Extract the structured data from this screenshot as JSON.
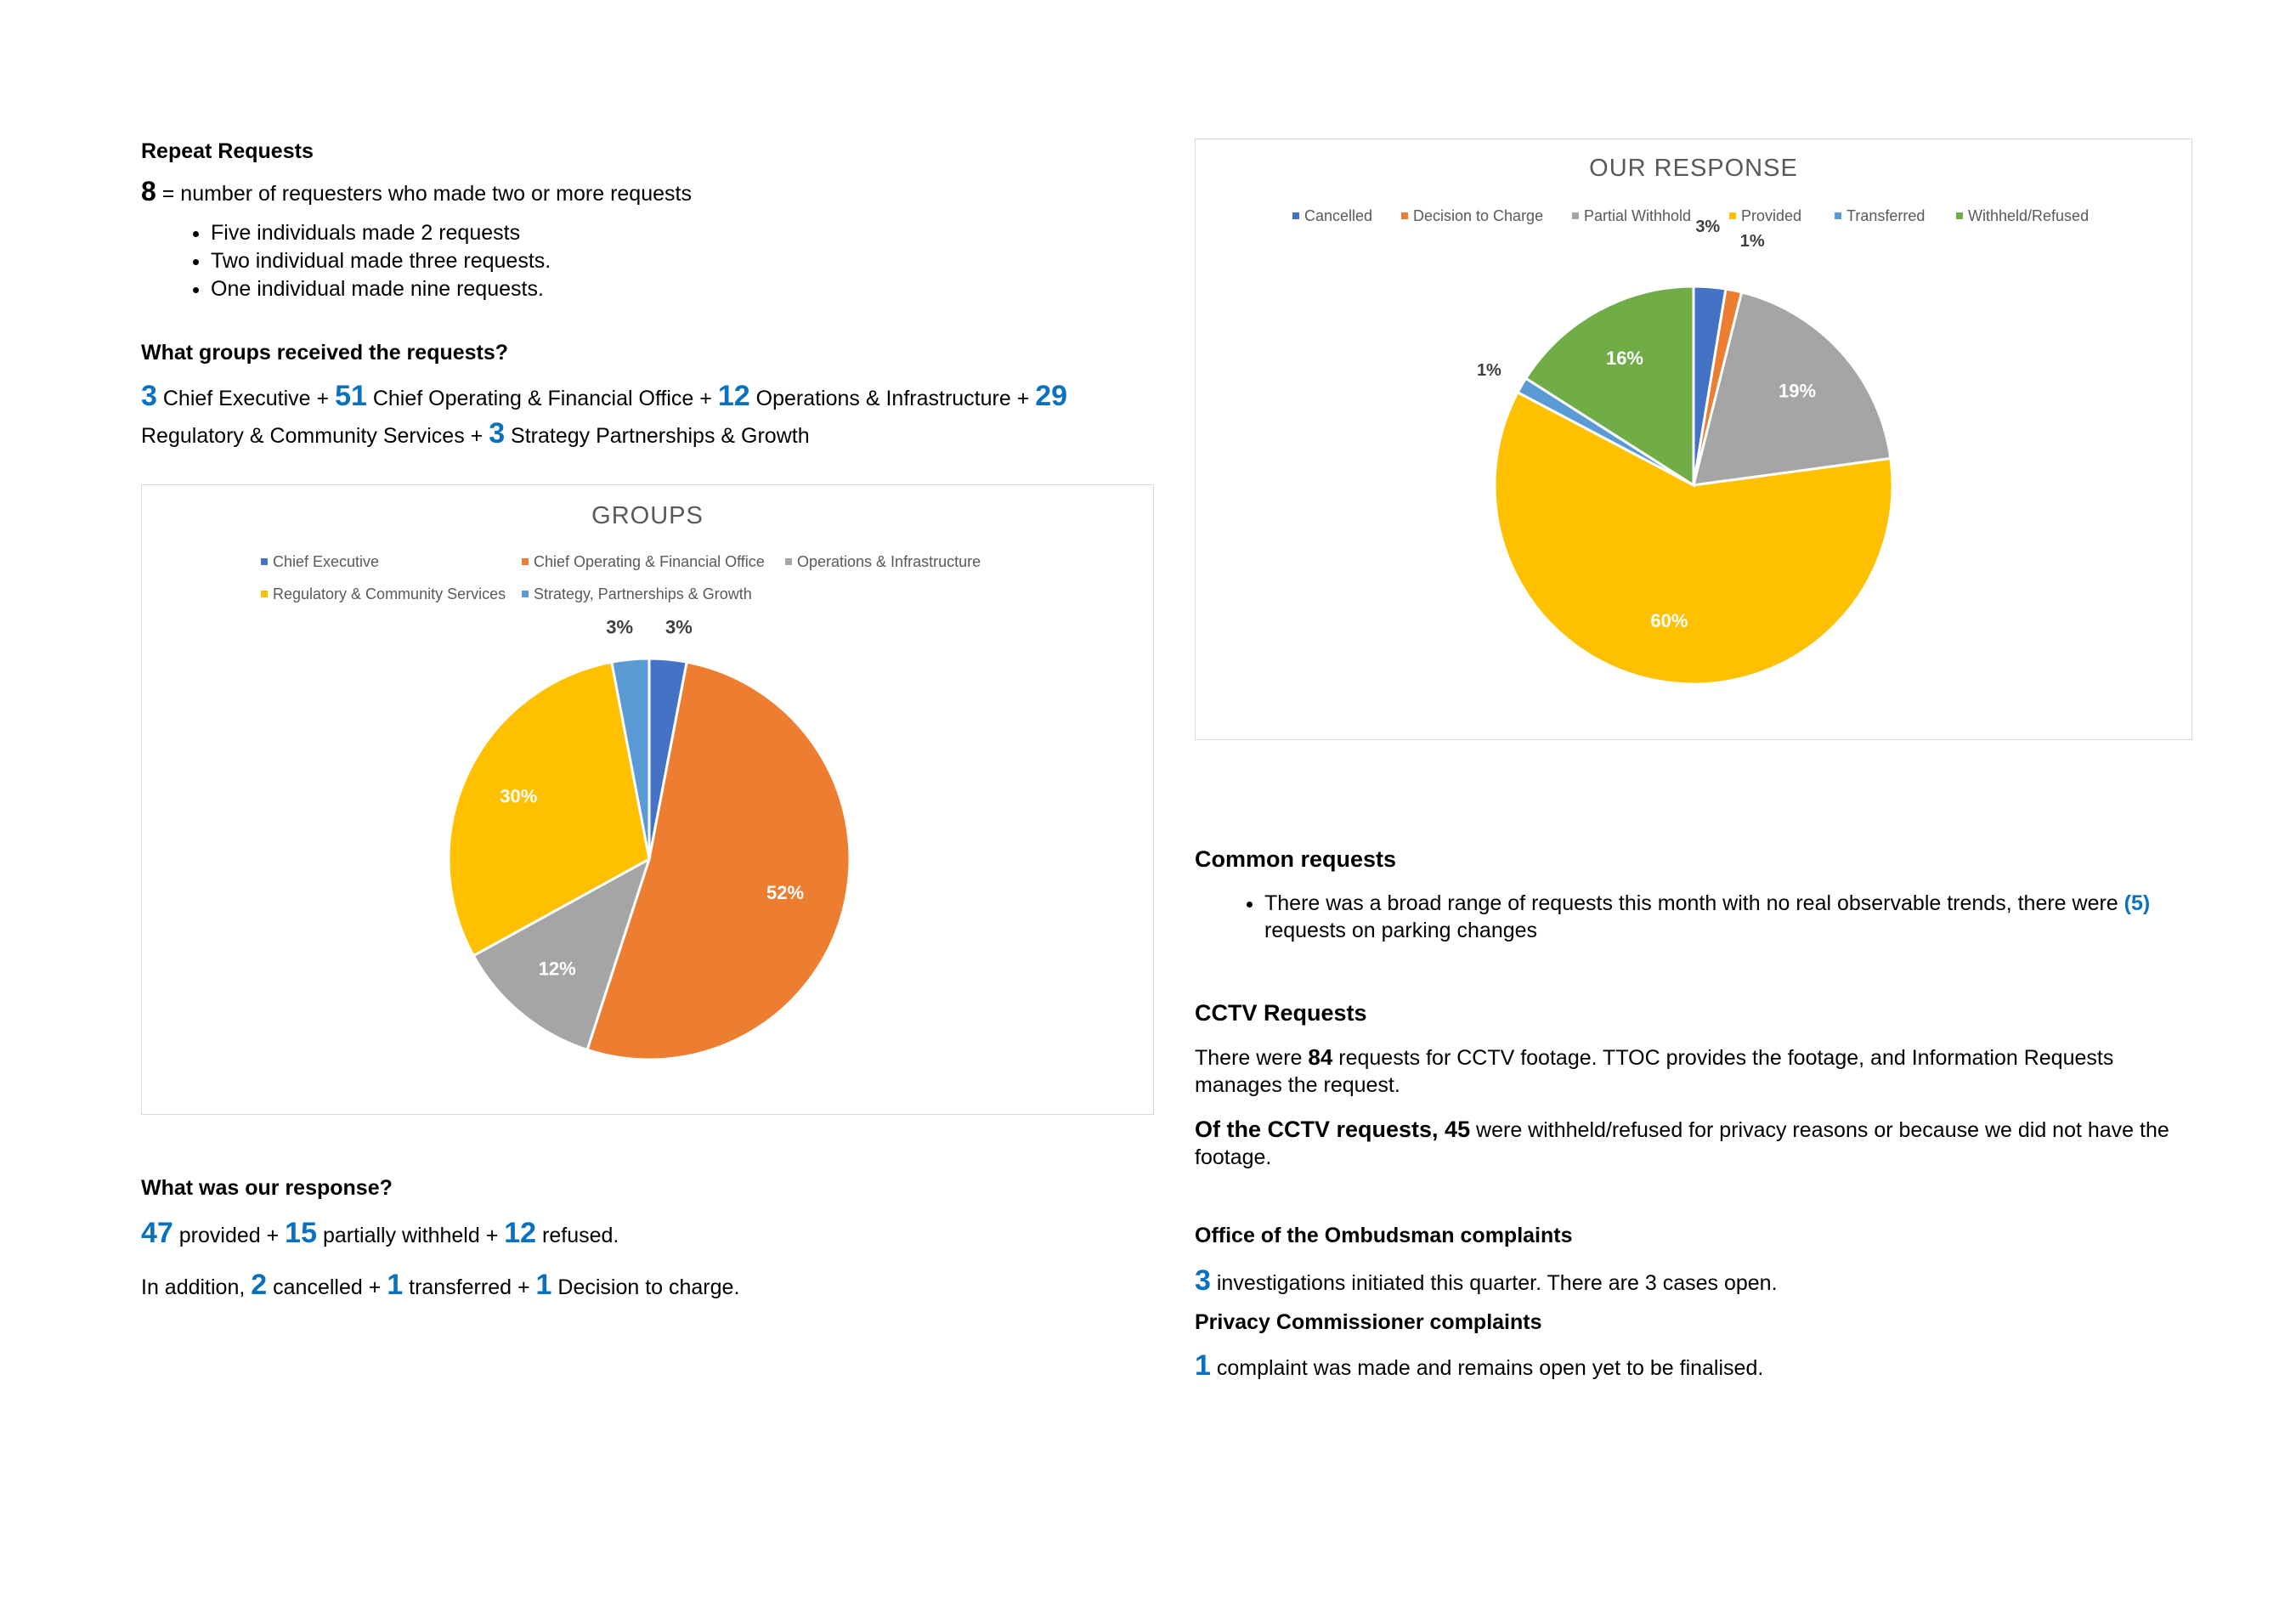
{
  "repeat": {
    "heading": "Repeat Requests",
    "number": "8",
    "text": " = number of requesters who made two or more requests",
    "bullets": [
      "Five individuals made 2 requests",
      "Two individual made three requests.",
      "One individual made nine requests."
    ]
  },
  "groups_text": {
    "heading": "What groups received the requests?",
    "n1": "3",
    "t1": " Chief Executive + ",
    "n2": "51",
    "t2": " Chief Operating & Financial Office + ",
    "n3": "12",
    "t3": " Operations & Infrastructure + ",
    "n4": "29",
    "t4": " Regulatory & Community Services + ",
    "n5": "3",
    "t5": " Strategy Partnerships & Growth"
  },
  "response_text": {
    "heading": "What was our response?",
    "n1": "47",
    "t1": " provided + ",
    "n2": "15",
    "t2": " partially withheld + ",
    "n3": "12",
    "t3": " refused.",
    "prefix": "In addition, ",
    "m1": "2",
    "u1": " cancelled + ",
    "m2": "1",
    "u2": " transferred + ",
    "m3": "1",
    "u3": " Decision to charge."
  },
  "common": {
    "heading": "Common requests",
    "bullet_a": "There was a broad range of requests this month with no real observable trends, there were ",
    "bullet_num": "(5)",
    "bullet_b": " requests on parking changes"
  },
  "cctv": {
    "heading": "CCTV Requests",
    "p1_a": "There were ",
    "p1_num": "84",
    "p1_b": " requests for CCTV footage. TTOC provides the footage, and Information Requests manages the request.",
    "p2_lead": "Of the CCTV requests, ",
    "p2_num": "45",
    "p2_b": " were withheld/refused for privacy reasons or because we did not have the footage."
  },
  "ombudsman": {
    "heading": "Office of the Ombudsman complaints",
    "num": "3",
    "text": " investigations initiated this quarter. There are 3 cases open."
  },
  "privacy": {
    "heading": "Privacy Commissioner complaints",
    "num": "1",
    "text": " complaint was made and remains open yet to be finalised."
  },
  "chart_data": [
    {
      "type": "pie",
      "title": "GROUPS",
      "legend_position": "top",
      "categories": [
        "Chief Executive",
        "Chief Operating & Financial Office",
        "Operations & Infrastructure",
        "Regulatory & Community Services",
        "Strategy, Partnerships & Growth"
      ],
      "values": [
        3,
        52,
        12,
        30,
        3
      ],
      "labels": [
        "3%",
        "52%",
        "12%",
        "30%",
        "3%"
      ],
      "colors": [
        "#4472c4",
        "#ed7d31",
        "#a5a5a5",
        "#ffc000",
        "#5b9bd5"
      ]
    },
    {
      "type": "pie",
      "title": "OUR RESPONSE",
      "legend_position": "top",
      "categories": [
        "Cancelled",
        "Decision to Charge",
        "Partial Withhold",
        "Provided",
        "Transferred",
        "Withheld/Refused"
      ],
      "values": [
        2.6,
        1.3,
        19,
        60,
        1.3,
        16
      ],
      "labels": [
        "3%",
        "1%",
        "19%",
        "60%",
        "1%",
        "16%"
      ],
      "colors": [
        "#4472c4",
        "#ed7d31",
        "#a5a5a5",
        "#ffc000",
        "#5b9bd5",
        "#70ad47"
      ]
    }
  ]
}
